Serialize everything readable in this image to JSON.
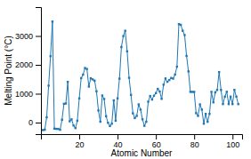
{
  "chart_data": {
    "type": "line",
    "xlabel": "Atomic Number",
    "ylabel": "Melting Point (°C)",
    "grid": false,
    "marker": "square",
    "xlim": [
      0,
      105
    ],
    "ylim": [
      -400,
      4000
    ],
    "xticks": [
      20,
      40,
      60,
      80,
      100
    ],
    "yticks": [
      0,
      1000,
      2000,
      3000
    ],
    "x": [
      1,
      2,
      3,
      4,
      5,
      6,
      7,
      8,
      9,
      10,
      11,
      12,
      13,
      14,
      15,
      16,
      17,
      18,
      19,
      20,
      21,
      22,
      23,
      24,
      25,
      26,
      27,
      28,
      29,
      30,
      31,
      32,
      33,
      34,
      35,
      36,
      37,
      38,
      39,
      40,
      41,
      42,
      43,
      44,
      45,
      46,
      47,
      48,
      49,
      50,
      51,
      52,
      53,
      54,
      55,
      56,
      57,
      58,
      59,
      60,
      61,
      62,
      63,
      64,
      65,
      66,
      67,
      68,
      69,
      70,
      71,
      72,
      73,
      74,
      75,
      76,
      77,
      78,
      79,
      80,
      81,
      82,
      83,
      84,
      85,
      86,
      87,
      88,
      89,
      90,
      91,
      92,
      93,
      94,
      95,
      96,
      97,
      98,
      99,
      100,
      101,
      102,
      103
    ],
    "values": [
      -259,
      -249,
      181,
      1278,
      2300,
      3500,
      -210,
      -218,
      -220,
      -249,
      98,
      650,
      660,
      1410,
      44,
      113,
      -101,
      -189,
      64,
      839,
      1541,
      1660,
      1890,
      1857,
      1246,
      1535,
      1495,
      1453,
      1083,
      420,
      30,
      938,
      817,
      221,
      -7,
      -119,
      -39,
      769,
      63,
      839,
      1522,
      2617,
      2996,
      3180,
      2468,
      1552,
      961,
      321,
      157,
      232,
      630,
      449,
      114,
      -112,
      29,
      725,
      920,
      798,
      931,
      1021,
      1168,
      1077,
      822,
      1313,
      1529,
      1412,
      1474,
      1545,
      1522,
      1663,
      1936,
      3410,
      3387,
      3180,
      3033,
      2310,
      1772,
      1064,
      1063,
      1063,
      327,
      232,
      630,
      449,
      -39,
      302,
      29,
      302,
      1064,
      700,
      1050,
      1132,
      1750,
      1132,
      640,
      900,
      1067,
      640,
      900,
      640,
      1132,
      900,
      640
    ]
  }
}
